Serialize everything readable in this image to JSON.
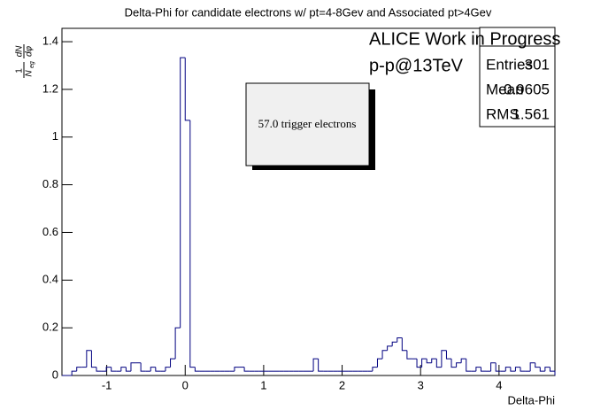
{
  "chart_data": {
    "type": "histogram",
    "title": "Delta-Phi for candidate electrons w/ pt=4-8Gev and Associated pt>4Gev",
    "xlabel": "Delta-Phi",
    "ylabel": {
      "factor_num": "1",
      "factor_den": "N",
      "factor_den_sub": "eg",
      "deriv_num": "dN",
      "deriv_den": "dφ"
    },
    "annotations": {
      "experiment": "ALICE Work in Progress",
      "system": "p-p@13TeV",
      "box": "57.0 trigger electrons"
    },
    "stats": {
      "entries_label": "Entries",
      "entries": 301,
      "mean_label": "Mean",
      "mean": 0.9605,
      "rms_label": "RMS",
      "rms": 1.561
    },
    "color": "#000080",
    "bins": [
      -1.5708,
      -1.508,
      -1.4451,
      -1.3823,
      -1.3195,
      -1.2566,
      -1.1938,
      -1.131,
      -1.0681,
      -1.0053,
      -0.9425,
      -0.8796,
      -0.8168,
      -0.754,
      -0.6912,
      -0.6283,
      -0.5655,
      -0.5027,
      -0.4398,
      -0.377,
      -0.3142,
      -0.2513,
      -0.1885,
      -0.1257,
      -0.0628,
      0,
      0.0628,
      0.1257,
      0.1885,
      0.2513,
      0.3142,
      0.377,
      0.4398,
      0.5027,
      0.5655,
      0.6283,
      0.6912,
      0.754,
      0.8168,
      0.8796,
      0.9425,
      1.0053,
      1.0681,
      1.131,
      1.1938,
      1.2566,
      1.3195,
      1.3823,
      1.4451,
      1.508,
      1.5708,
      1.6336,
      1.6965,
      1.7593,
      1.8221,
      1.885,
      1.9478,
      2.0106,
      2.0735,
      2.1363,
      2.1991,
      2.2619,
      2.3248,
      2.3876,
      2.4504,
      2.5133,
      2.5761,
      2.6389,
      2.7018,
      2.7646,
      2.8274,
      2.8903,
      2.9531,
      3.0159,
      3.0788,
      3.1416,
      3.2044,
      3.2673,
      3.3301,
      3.3929,
      3.4558,
      3.5186,
      3.5814,
      3.6442,
      3.7071,
      3.7699,
      3.8327,
      3.8956,
      3.9584,
      4.0212,
      4.0841,
      4.1469,
      4.2097,
      4.2726,
      4.3354,
      4.3982,
      4.4611,
      4.5239,
      4.5867,
      4.6496,
      4.7124
    ],
    "values": [
      0,
      0,
      0.018,
      0.035,
      0.035,
      0.105,
      0.035,
      0.018,
      0.018,
      0.035,
      0.018,
      0.018,
      0.035,
      0.018,
      0.053,
      0.053,
      0.018,
      0.018,
      0.035,
      0.018,
      0.018,
      0.035,
      0.07,
      0.2,
      1.333,
      1.07,
      0.035,
      0.018,
      0.018,
      0.018,
      0.018,
      0.018,
      0.018,
      0.018,
      0.018,
      0.035,
      0.035,
      0.018,
      0.018,
      0.018,
      0.018,
      0.018,
      0.018,
      0.018,
      0.018,
      0.018,
      0.018,
      0.018,
      0.018,
      0.018,
      0.018,
      0.07,
      0.018,
      0.018,
      0.018,
      0.018,
      0.018,
      0.018,
      0.018,
      0.018,
      0.018,
      0.018,
      0.018,
      0.035,
      0.07,
      0.105,
      0.123,
      0.14,
      0.158,
      0.105,
      0.07,
      0.07,
      0.035,
      0.07,
      0.053,
      0.07,
      0.035,
      0.105,
      0.07,
      0.035,
      0.053,
      0.07,
      0.018,
      0.018,
      0.035,
      0.018,
      0.018,
      0.053,
      0.018,
      0.018,
      0.035,
      0.018,
      0.035,
      0.018,
      0.018,
      0.053,
      0.035,
      0.018,
      0.035,
      0.018
    ],
    "xlim": [
      -1.5708,
      4.7124
    ],
    "xticks": [
      -1,
      0,
      1,
      2,
      3,
      4
    ],
    "ylim": [
      0,
      1.456
    ],
    "yticks": [
      0,
      0.2,
      0.4,
      0.6,
      0.8,
      1,
      1.2,
      1.4
    ]
  }
}
